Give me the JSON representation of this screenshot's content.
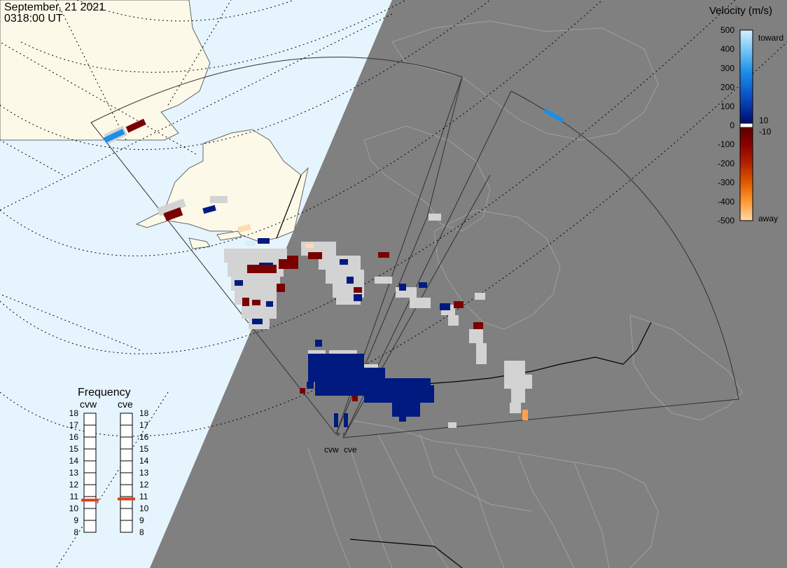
{
  "header": {
    "date": "September, 21 2021",
    "time": "0318:00 UT"
  },
  "velocity_scale": {
    "title": "Velocity (m/s)",
    "ticks": [
      "500",
      "400",
      "300",
      "200",
      "100",
      "0",
      "-100",
      "-200",
      "-300",
      "-400",
      "-500"
    ],
    "tick_values": [
      500,
      400,
      300,
      200,
      100,
      0,
      -100,
      -200,
      -300,
      -400,
      -500
    ],
    "toward_label": "toward",
    "away_label": "away",
    "cut_high": "10",
    "cut_low": "-10",
    "colors": {
      "toward_max": "#d6efff",
      "toward_mid": "#1b8fe8",
      "toward_low": "#0a2fa0",
      "near_zero_pos": "#001a80",
      "gap": "#ffffff",
      "near_zero_neg": "#7a0000",
      "away_mid": "#d44a00",
      "away_max": "#ffd9b0",
      "ground_scatter": "#d3d3d3"
    }
  },
  "frequency_panel": {
    "title": "Frequency",
    "radars": [
      {
        "name": "cvw",
        "frequency_mhz": 10.7
      },
      {
        "name": "cve",
        "frequency_mhz": 10.8
      }
    ],
    "scale_values": [
      "18",
      "17",
      "16",
      "15",
      "14",
      "13",
      "12",
      "11",
      "10",
      "9",
      "8"
    ],
    "indicator_color": "#e0401e"
  },
  "map": {
    "ocean_color": "#e6f4fd",
    "land_color": "#fdf9e8",
    "night_color": "#808080",
    "radar_sites": [
      {
        "name": "cvw"
      },
      {
        "name": "cve"
      }
    ]
  }
}
